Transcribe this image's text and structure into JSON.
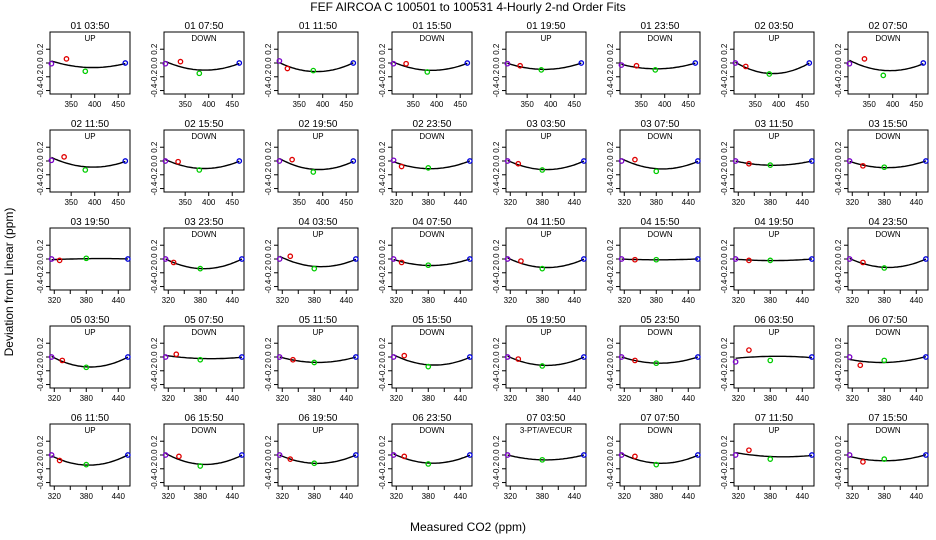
{
  "chart_data": {
    "type": "scatter",
    "title": "FEF   AIRCOA C   100501 to 100531   4-Hourly 2-nd Order Fits",
    "xlabel": "Measured CO2 (ppm)",
    "ylabel": "Deviation from Linear (ppm)",
    "ylim": [
      -0.45,
      0.45
    ],
    "yticks": [
      -0.4,
      -0.2,
      0.0,
      0.2
    ],
    "ytick_labels": [
      "-0.4",
      "-0.2",
      "0.0",
      "0.2"
    ],
    "x_axes": [
      {
        "xlim": [
          305,
          475
        ],
        "ticks": [
          350,
          400,
          450
        ],
        "labels": [
          "350",
          "400",
          "450"
        ]
      },
      {
        "xlim": [
          312,
          462
        ],
        "ticks": [
          320,
          350,
          380,
          410,
          440
        ],
        "labels": [
          "320",
          "",
          "380",
          "",
          "440"
        ]
      }
    ],
    "grid": false,
    "legend": "none",
    "colors": {
      "cal_1": "#7a00c8",
      "cal_2": "#e00000",
      "cal_3": "#00cc00",
      "cal_4": "#0000dd",
      "fit": "#000000"
    },
    "panels": [
      {
        "title": "01 03:50",
        "label": "UP",
        "axis": 0,
        "x": [
          308,
          340,
          380,
          465
        ],
        "y": [
          -0.01,
          0.06,
          -0.12,
          0.0
        ]
      },
      {
        "title": "01 07:50",
        "label": "DOWN",
        "axis": 0,
        "x": [
          308,
          340,
          380,
          465
        ],
        "y": [
          -0.01,
          0.02,
          -0.15,
          0.0
        ]
      },
      {
        "title": "01 11:50",
        "label": "",
        "axis": 0,
        "x": [
          308,
          325,
          380,
          465
        ],
        "y": [
          0.03,
          -0.08,
          -0.11,
          0.0
        ]
      },
      {
        "title": "01 15:50",
        "label": "DOWN",
        "axis": 0,
        "x": [
          308,
          335,
          380,
          465
        ],
        "y": [
          -0.01,
          -0.01,
          -0.13,
          0.0
        ]
      },
      {
        "title": "01 19:50",
        "label": "UP",
        "axis": 0,
        "x": [
          308,
          335,
          380,
          465
        ],
        "y": [
          -0.01,
          -0.04,
          -0.1,
          0.0
        ]
      },
      {
        "title": "01 23:50",
        "label": "DOWN",
        "axis": 0,
        "x": [
          308,
          340,
          380,
          465
        ],
        "y": [
          -0.03,
          -0.04,
          -0.1,
          0.0
        ]
      },
      {
        "title": "02 03:50",
        "label": "UP",
        "axis": 0,
        "x": [
          308,
          330,
          380,
          465
        ],
        "y": [
          0.0,
          -0.05,
          -0.16,
          0.0
        ]
      },
      {
        "title": "02 07:50",
        "label": "DOWN",
        "axis": 0,
        "x": [
          308,
          340,
          380,
          465
        ],
        "y": [
          -0.01,
          0.06,
          -0.18,
          0.0
        ]
      },
      {
        "title": "02 11:50",
        "label": "UP",
        "axis": 0,
        "x": [
          308,
          335,
          380,
          465
        ],
        "y": [
          0.01,
          0.06,
          -0.13,
          0.0
        ]
      },
      {
        "title": "02 15:50",
        "label": "DOWN",
        "axis": 0,
        "x": [
          308,
          335,
          380,
          465
        ],
        "y": [
          0.0,
          -0.01,
          -0.13,
          0.0
        ]
      },
      {
        "title": "02 19:50",
        "label": "UP",
        "axis": 0,
        "x": [
          308,
          335,
          380,
          465
        ],
        "y": [
          0.0,
          0.02,
          -0.16,
          0.0
        ]
      },
      {
        "title": "02 23:50",
        "label": "DOWN",
        "axis": 1,
        "x": [
          315,
          330,
          380,
          458
        ],
        "y": [
          0.01,
          -0.08,
          -0.1,
          0.0
        ]
      },
      {
        "title": "03 03:50",
        "label": "UP",
        "axis": 1,
        "x": [
          315,
          335,
          380,
          458
        ],
        "y": [
          0.0,
          -0.04,
          -0.13,
          0.0
        ]
      },
      {
        "title": "03 07:50",
        "label": "DOWN",
        "axis": 1,
        "x": [
          315,
          340,
          380,
          458
        ],
        "y": [
          0.0,
          0.02,
          -0.15,
          0.0
        ]
      },
      {
        "title": "03 11:50",
        "label": "UP",
        "axis": 1,
        "x": [
          315,
          340,
          380,
          458
        ],
        "y": [
          0.0,
          -0.04,
          -0.06,
          0.0
        ]
      },
      {
        "title": "03 15:50",
        "label": "DOWN",
        "axis": 1,
        "x": [
          315,
          340,
          380,
          458
        ],
        "y": [
          0.0,
          -0.07,
          -0.09,
          0.0
        ]
      },
      {
        "title": "03 19:50",
        "label": "",
        "axis": 1,
        "x": [
          315,
          330,
          380,
          458
        ],
        "y": [
          0.0,
          -0.02,
          0.01,
          0.0
        ]
      },
      {
        "title": "03 23:50",
        "label": "DOWN",
        "axis": 1,
        "x": [
          315,
          330,
          380,
          458
        ],
        "y": [
          0.0,
          -0.05,
          -0.14,
          0.0
        ]
      },
      {
        "title": "04 03:50",
        "label": "UP",
        "axis": 1,
        "x": [
          315,
          335,
          380,
          458
        ],
        "y": [
          0.0,
          0.04,
          -0.14,
          0.0
        ]
      },
      {
        "title": "04 07:50",
        "label": "DOWN",
        "axis": 1,
        "x": [
          315,
          330,
          380,
          458
        ],
        "y": [
          0.0,
          -0.05,
          -0.09,
          0.0
        ]
      },
      {
        "title": "04 11:50",
        "label": "UP",
        "axis": 1,
        "x": [
          315,
          340,
          380,
          458
        ],
        "y": [
          0.0,
          -0.03,
          -0.14,
          0.0
        ]
      },
      {
        "title": "04 15:50",
        "label": "DOWN",
        "axis": 1,
        "x": [
          315,
          340,
          380,
          458
        ],
        "y": [
          0.0,
          -0.01,
          -0.01,
          0.0
        ]
      },
      {
        "title": "04 19:50",
        "label": "UP",
        "axis": 1,
        "x": [
          315,
          340,
          380,
          458
        ],
        "y": [
          0.0,
          -0.02,
          -0.02,
          0.0
        ]
      },
      {
        "title": "04 23:50",
        "label": "DOWN",
        "axis": 1,
        "x": [
          315,
          340,
          380,
          458
        ],
        "y": [
          0.0,
          -0.05,
          -0.13,
          0.0
        ]
      },
      {
        "title": "05 03:50",
        "label": "UP",
        "axis": 1,
        "x": [
          315,
          335,
          380,
          458
        ],
        "y": [
          0.0,
          -0.05,
          -0.15,
          0.0
        ]
      },
      {
        "title": "05 07:50",
        "label": "DOWN",
        "axis": 1,
        "x": [
          315,
          335,
          380,
          458
        ],
        "y": [
          0.0,
          0.04,
          -0.04,
          0.0
        ]
      },
      {
        "title": "05 11:50",
        "label": "UP",
        "axis": 1,
        "x": [
          315,
          340,
          380,
          458
        ],
        "y": [
          0.0,
          -0.04,
          -0.08,
          0.0
        ]
      },
      {
        "title": "05 15:50",
        "label": "DOWN",
        "axis": 1,
        "x": [
          315,
          335,
          380,
          458
        ],
        "y": [
          0.0,
          0.02,
          -0.14,
          0.0
        ]
      },
      {
        "title": "05 19:50",
        "label": "UP",
        "axis": 1,
        "x": [
          315,
          335,
          380,
          458
        ],
        "y": [
          0.0,
          -0.03,
          -0.13,
          0.0
        ]
      },
      {
        "title": "05 23:50",
        "label": "DOWN",
        "axis": 1,
        "x": [
          315,
          340,
          380,
          458
        ],
        "y": [
          0.0,
          -0.05,
          -0.09,
          0.0
        ]
      },
      {
        "title": "06 03:50",
        "label": "UP",
        "axis": 1,
        "x": [
          315,
          340,
          380,
          458
        ],
        "y": [
          -0.07,
          0.1,
          -0.05,
          0.0
        ]
      },
      {
        "title": "06 07:50",
        "label": "DOWN",
        "axis": 1,
        "x": [
          315,
          335,
          380,
          458
        ],
        "y": [
          0.0,
          -0.12,
          -0.05,
          0.0
        ]
      },
      {
        "title": "06 11:50",
        "label": "UP",
        "axis": 1,
        "x": [
          315,
          330,
          380,
          458
        ],
        "y": [
          0.0,
          -0.08,
          -0.14,
          0.0
        ]
      },
      {
        "title": "06 15:50",
        "label": "DOWN",
        "axis": 1,
        "x": [
          315,
          340,
          380,
          458
        ],
        "y": [
          0.0,
          -0.02,
          -0.16,
          0.0
        ]
      },
      {
        "title": "06 19:50",
        "label": "UP",
        "axis": 1,
        "x": [
          315,
          335,
          380,
          458
        ],
        "y": [
          0.0,
          -0.06,
          -0.12,
          0.0
        ]
      },
      {
        "title": "06 23:50",
        "label": "DOWN",
        "axis": 1,
        "x": [
          315,
          335,
          380,
          458
        ],
        "y": [
          0.0,
          -0.02,
          -0.13,
          0.0
        ]
      },
      {
        "title": "07 03:50",
        "label": "3-PT/AVECUR",
        "axis": 1,
        "x": [
          315,
          380,
          458
        ],
        "y": [
          0.0,
          -0.07,
          0.0
        ]
      },
      {
        "title": "07 07:50",
        "label": "DOWN",
        "axis": 1,
        "x": [
          315,
          340,
          380,
          458
        ],
        "y": [
          0.0,
          -0.02,
          -0.14,
          0.0
        ]
      },
      {
        "title": "07 11:50",
        "label": "UP",
        "axis": 1,
        "x": [
          315,
          340,
          380,
          458
        ],
        "y": [
          0.0,
          0.07,
          -0.06,
          0.0
        ]
      },
      {
        "title": "07 15:50",
        "label": "DOWN",
        "axis": 1,
        "x": [
          315,
          340,
          380,
          458
        ],
        "y": [
          0.0,
          -0.1,
          -0.06,
          0.0
        ]
      }
    ]
  }
}
